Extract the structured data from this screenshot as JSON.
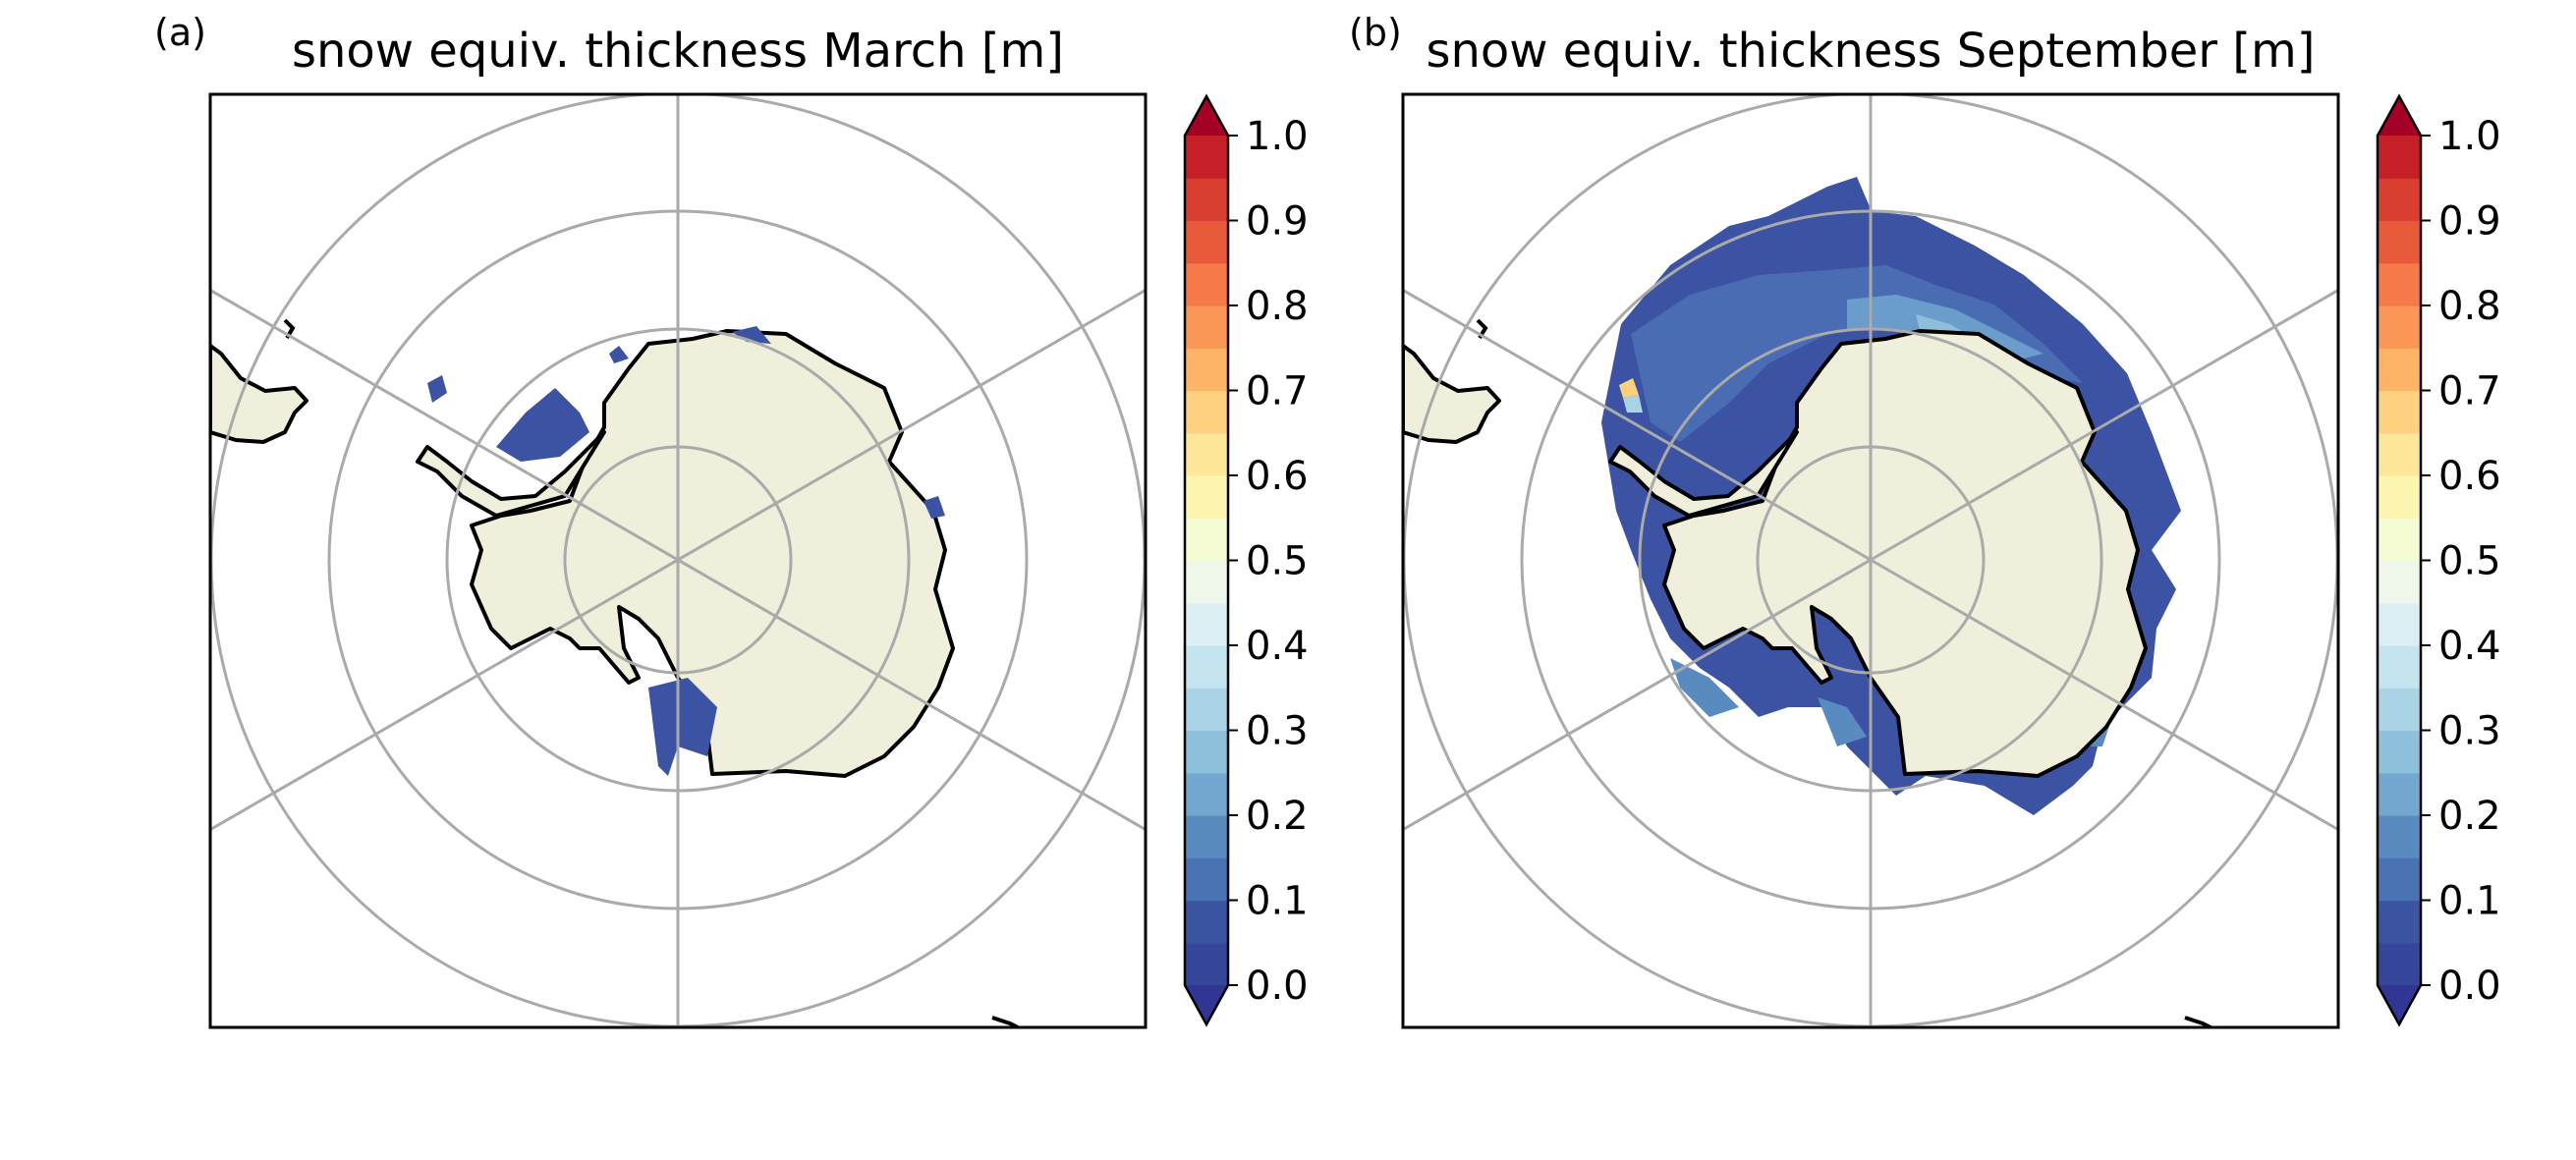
{
  "figure": {
    "panels": [
      {
        "letter": "(a)",
        "title": "snow equiv. thickness March [m]"
      },
      {
        "letter": "(b)",
        "title": "snow equiv. thickness September [m]"
      }
    ]
  },
  "colorbar": {
    "tick_labels": [
      "0.0",
      "0.1",
      "0.2",
      "0.3",
      "0.4",
      "0.5",
      "0.6",
      "0.7",
      "0.8",
      "0.9",
      "1.0"
    ],
    "range": [
      0.0,
      1.0
    ],
    "extend": "both",
    "colors": [
      "#36469b",
      "#3b55a3",
      "#4a73b3",
      "#5a8bc0",
      "#73a7cf",
      "#8ec0dc",
      "#aad4e6",
      "#c4e4ef",
      "#dbeff4",
      "#eef7e9",
      "#f5fbd2",
      "#fdf6b0",
      "#fee79a",
      "#fed180",
      "#fdb466",
      "#fa9656",
      "#f67a49",
      "#e85b3a",
      "#d93e30",
      "#c52028"
    ],
    "under_color": "#313695",
    "over_color": "#a50026"
  },
  "map": {
    "land_color": "#efefdb",
    "ocean_color": "#ffffff",
    "gridline_color": "#aaaaaa",
    "coastline_color": "#000000"
  }
}
